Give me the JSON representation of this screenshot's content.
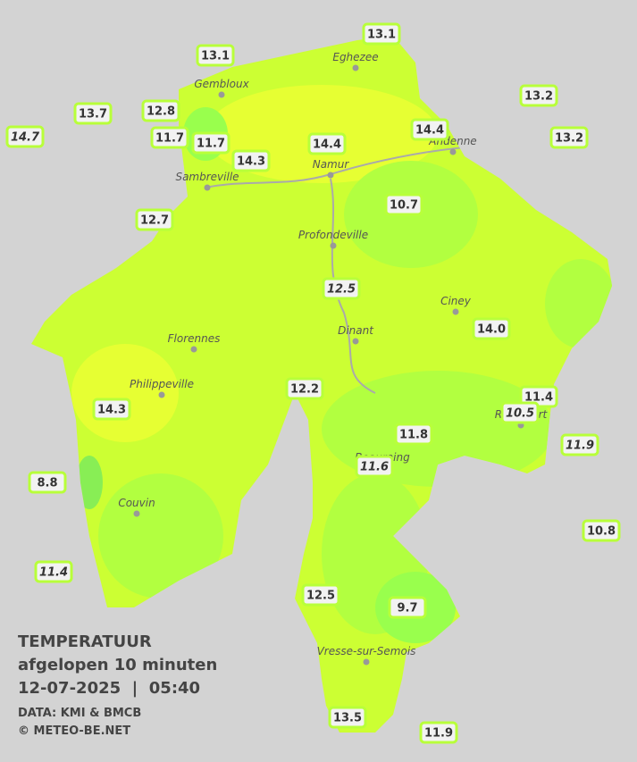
{
  "legend": {
    "title": "TEMPERATUUR",
    "subtitle": "afgelopen 10 minuten",
    "datetime": "12-07-2025  |  05:40",
    "source": "DATA: KMI & BMCB",
    "copyright": "© METEO-BE.NET"
  },
  "towns": [
    "Eghezee",
    "Gembloux",
    "Andenne",
    "Namur",
    "Sambreville",
    "Profondeville",
    "Ciney",
    "Dinant",
    "Florennes",
    "Philippeville",
    "Rochefort",
    "Beauraing",
    "Couvin",
    "Vresse-sur-Semois"
  ],
  "stations": [
    {
      "label": "13.1",
      "italic": false
    },
    {
      "label": "13.1",
      "italic": false
    },
    {
      "label": "13.2",
      "italic": false
    },
    {
      "label": "13.7",
      "italic": false
    },
    {
      "label": "12.8",
      "italic": false
    },
    {
      "label": "14.4",
      "italic": false
    },
    {
      "label": "14.7",
      "italic": true
    },
    {
      "label": "11.7",
      "italic": false
    },
    {
      "label": "11.7",
      "italic": false
    },
    {
      "label": "14.4",
      "italic": false
    },
    {
      "label": "13.2",
      "italic": false
    },
    {
      "label": "14.3",
      "italic": false
    },
    {
      "label": "10.7",
      "italic": false
    },
    {
      "label": "12.7",
      "italic": false
    },
    {
      "label": "12.5",
      "italic": true
    },
    {
      "label": "14.0",
      "italic": false
    },
    {
      "label": "12.2",
      "italic": false
    },
    {
      "label": "11.4",
      "italic": false
    },
    {
      "label": "14.3",
      "italic": false
    },
    {
      "label": "10.5",
      "italic": true
    },
    {
      "label": "11.8",
      "italic": false
    },
    {
      "label": "11.9",
      "italic": true
    },
    {
      "label": "11.6",
      "italic": true
    },
    {
      "label": "8.8",
      "italic": false
    },
    {
      "label": "10.8",
      "italic": false
    },
    {
      "label": "11.4",
      "italic": true
    },
    {
      "label": "12.5",
      "italic": false
    },
    {
      "label": "9.7",
      "italic": false
    },
    {
      "label": "13.5",
      "italic": false
    },
    {
      "label": "11.9",
      "italic": false
    }
  ]
}
